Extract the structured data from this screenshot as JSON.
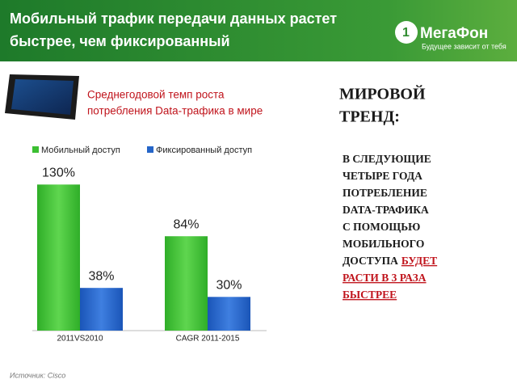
{
  "header": {
    "title_lines": [
      "Мобильный трафик передачи данных растет",
      "быстрее, чем фиксированный"
    ],
    "logo": "МегаФон",
    "slogan": "Будущее зависит от тебя"
  },
  "subtitle_lines": [
    "Среднегодовой темп роста",
    "потребления Data-трафика в мире"
  ],
  "trend": {
    "heading_lines": [
      "МИРОВОЙ",
      "ТРЕНД:"
    ],
    "lines": [
      [
        {
          "text": "В СЛЕДУЮЩИЕ"
        }
      ],
      [
        {
          "text": "ЧЕТЫРЕ ГОДА"
        }
      ],
      [
        {
          "text": "ПОТРЕБЛЕНИЕ"
        }
      ],
      [
        {
          "text": "DATA-ТРАФИКА"
        }
      ],
      [
        {
          "text": "С ПОМОЩЬЮ"
        }
      ],
      [
        {
          "text": "МОБИЛЬНОГО"
        }
      ],
      [
        {
          "text": "ДОСТУПА"
        },
        {
          "text": "БУДЕТ",
          "highlight": true
        }
      ],
      [
        {
          "text": "РАСТИ В 3 РАЗА",
          "highlight": true
        }
      ],
      [
        {
          "text": "БЫСТРЕЕ",
          "highlight": true
        }
      ]
    ]
  },
  "source": "Источник: Cisco",
  "chart_data": {
    "type": "bar",
    "categories": [
      "2011VS2010",
      "CAGR 2011-2015"
    ],
    "series": [
      {
        "name": "Мобильный доступ",
        "color": "#3cbf32",
        "values": [
          130,
          84
        ],
        "value_labels": [
          "130%",
          "84%"
        ]
      },
      {
        "name": "Фиксированный доступ",
        "color": "#2565c8",
        "values": [
          38,
          30
        ],
        "value_labels": [
          "38%",
          "30%"
        ]
      }
    ]
  }
}
